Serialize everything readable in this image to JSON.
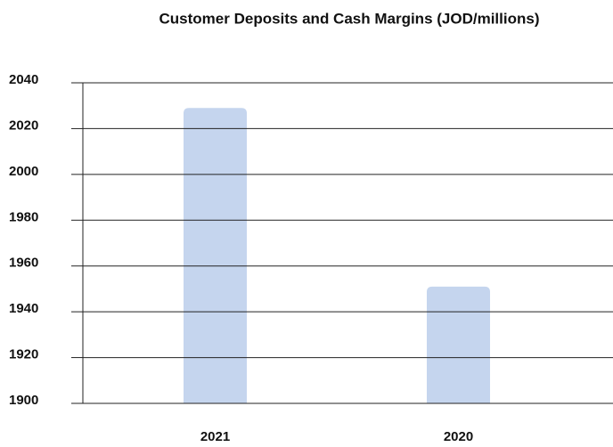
{
  "chart_data": {
    "type": "bar",
    "title": "Customer Deposits and Cash Margins (JOD/millions)",
    "categories": [
      "2021",
      "2020"
    ],
    "values": [
      2029,
      1951
    ],
    "color": "#c5d5ee",
    "ylim": [
      1900,
      2040
    ],
    "yticks": [
      1900,
      1920,
      1940,
      1960,
      1980,
      2000,
      2020,
      2040
    ],
    "grid": true
  }
}
